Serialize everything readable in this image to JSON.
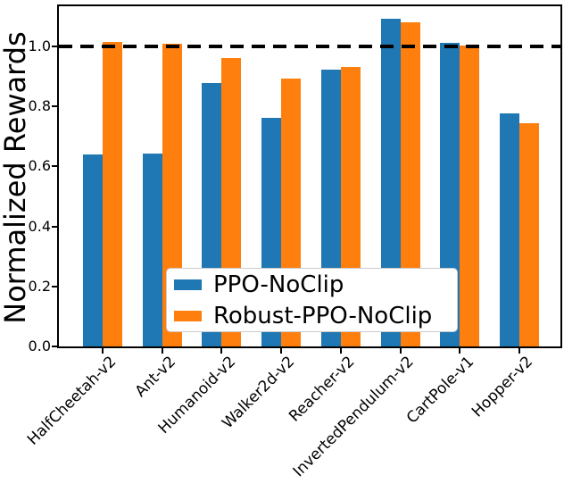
{
  "chart_data": {
    "type": "bar",
    "title": "",
    "xlabel": "",
    "ylabel": "Normalized Rewards",
    "categories": [
      "HalfCheetah-v2",
      "Ant-v2",
      "Humanoid-v2",
      "Walker2d-v2",
      "Reacher-v2",
      "InvertedPendulum-v2",
      "CartPole-v1",
      "Hopper-v2"
    ],
    "series": [
      {
        "name": "PPO-NoClip",
        "color": "#1f77b4",
        "values": [
          0.64,
          0.643,
          0.878,
          0.762,
          0.923,
          1.093,
          1.011,
          0.776
        ]
      },
      {
        "name": "Robust-PPO-NoClip",
        "color": "#ff7f0e",
        "values": [
          1.016,
          1.008,
          0.961,
          0.894,
          0.932,
          1.08,
          1.004,
          0.743
        ]
      }
    ],
    "yticks": [
      "0.0",
      "0.2",
      "0.4",
      "0.6",
      "0.8",
      "1.0"
    ],
    "ylim": [
      0,
      1.13
    ],
    "reference_line": {
      "y": 1.0,
      "style": "dashed",
      "color": "#000000"
    },
    "legend_position": "lower-center",
    "grid": false,
    "axis_color": "#000000"
  }
}
